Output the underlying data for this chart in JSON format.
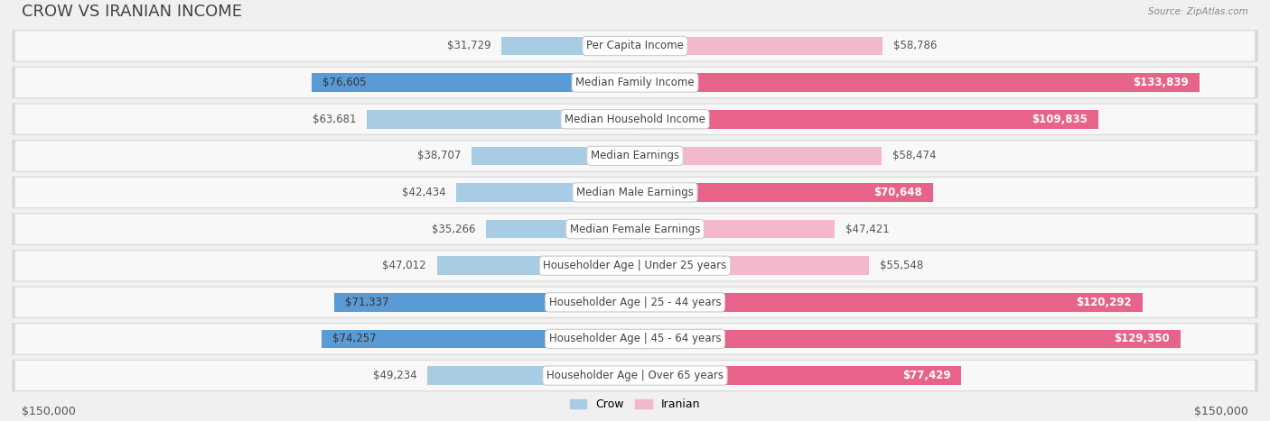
{
  "title": "CROW VS IRANIAN INCOME",
  "source": "Source: ZipAtlas.com",
  "categories": [
    "Per Capita Income",
    "Median Family Income",
    "Median Household Income",
    "Median Earnings",
    "Median Male Earnings",
    "Median Female Earnings",
    "Householder Age | Under 25 years",
    "Householder Age | 25 - 44 years",
    "Householder Age | 45 - 64 years",
    "Householder Age | Over 65 years"
  ],
  "crow_values": [
    31729,
    76605,
    63681,
    38707,
    42434,
    35266,
    47012,
    71337,
    74257,
    49234
  ],
  "iranian_values": [
    58786,
    133839,
    109835,
    58474,
    70648,
    47421,
    55548,
    120292,
    129350,
    77429
  ],
  "crow_color_light": "#a8cce4",
  "crow_color_dark": "#5b9bd5",
  "iranian_color_light": "#f4b8cb",
  "iranian_color_dark": "#e8638a",
  "max_value": 150000,
  "crow_label": "Crow",
  "iranian_label": "Iranian",
  "background_color": "#f0f0f0",
  "row_bg_color": "#e8e8e8",
  "row_inner_color": "#ffffff",
  "title_fontsize": 13,
  "label_fontsize": 8.5,
  "value_fontsize": 8.5,
  "axis_label": "$150,000",
  "dark_threshold": 0.45
}
